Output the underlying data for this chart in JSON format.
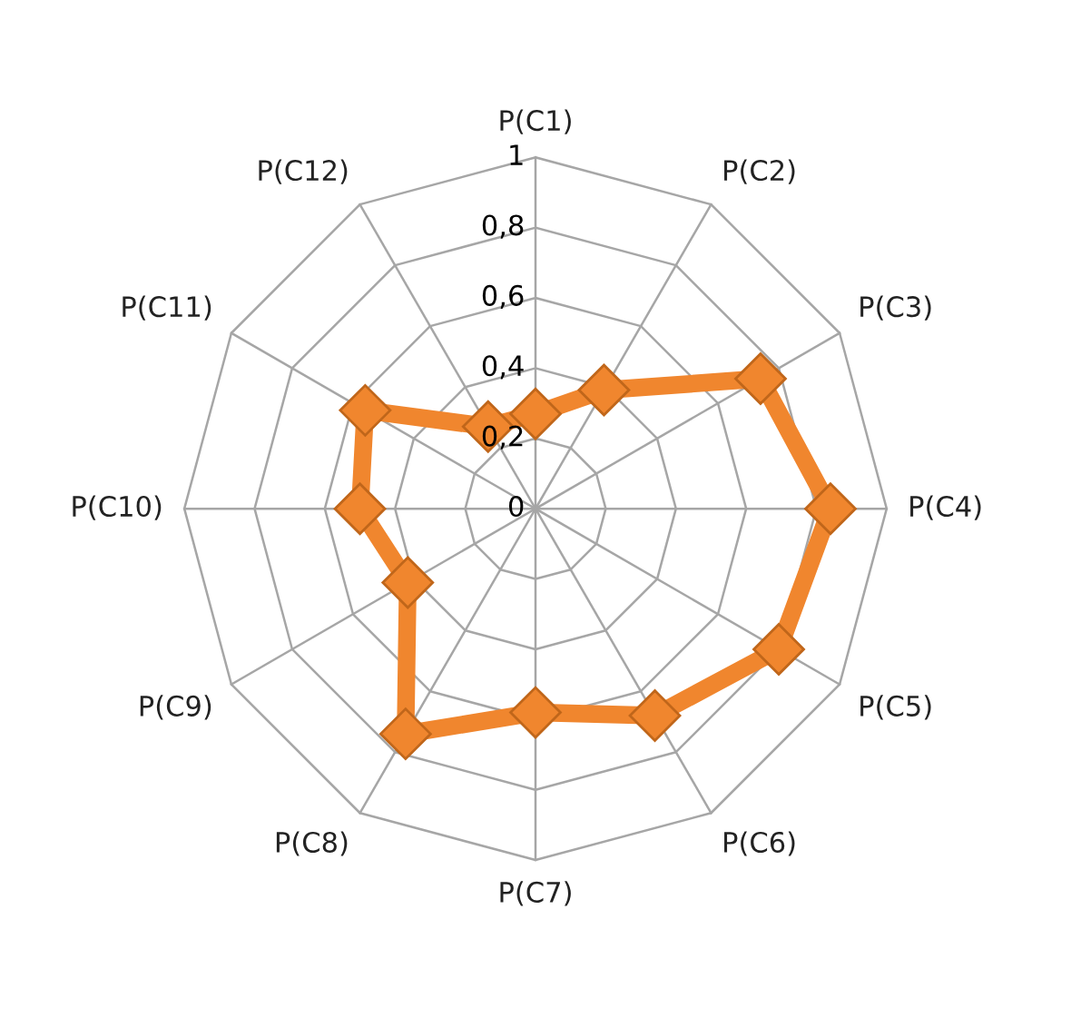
{
  "chart_data": {
    "type": "radar",
    "categories": [
      "P(C1)",
      "P(C2)",
      "P(C3)",
      "P(C4)",
      "P(C5)",
      "P(C6)",
      "P(C7)",
      "P(C8)",
      "P(C9)",
      "P(C10)",
      "P(C11)",
      "P(C12)"
    ],
    "series": [
      {
        "color": "#f0862e",
        "values": [
          0.27,
          0.39,
          0.74,
          0.84,
          0.8,
          0.68,
          0.58,
          0.74,
          0.42,
          0.5,
          0.56,
          0.27
        ]
      }
    ],
    "ylim": [
      0,
      1
    ],
    "yticks": [
      0,
      {
        "value": 0.2,
        "label": "0,2"
      },
      {
        "value": 0.4,
        "label": "0,4"
      },
      {
        "value": 0.6,
        "label": "0,6"
      },
      {
        "value": 0.8,
        "label": "0,8"
      },
      1
    ],
    "grid": true,
    "marker": "diamond",
    "line_style": "solid",
    "legend": false
  }
}
